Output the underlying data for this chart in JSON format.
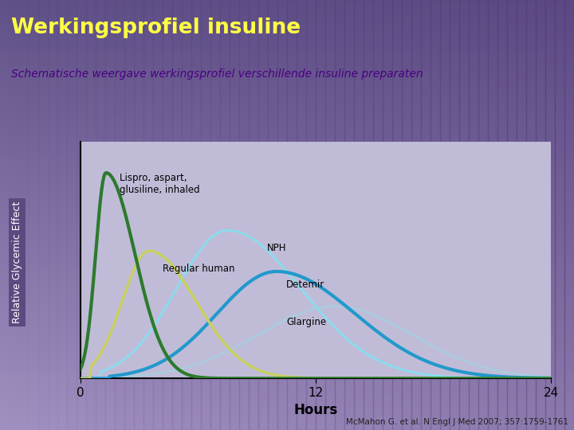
{
  "title": "Werkingsprofiel insuline",
  "subtitle": "Schematische weergave werkingsprofiel verschillende insuline preparaten",
  "xlabel": "Hours",
  "ylabel": "Relative Glycemic Effect",
  "xticks": [
    0,
    12,
    24
  ],
  "xlim": [
    0,
    24
  ],
  "ylim": [
    0,
    1.15
  ],
  "bg_top_color": "#a090c0",
  "bg_bottom_color": "#7060a0",
  "plot_bg_color": "#c0bcd8",
  "ylabel_bg_color": "#5a4a80",
  "title_color": "#ffff44",
  "subtitle_color": "#4b0082",
  "citation_color": "#222222",
  "lispro_color": "#2d7a2d",
  "regular_color": "#c8d060",
  "nph_color": "#88ddee",
  "detemir_color": "#2299cc",
  "glargine_color": "#aaccdd",
  "citation": "McMahon G. et al. N Engl J Med 2007; 357:1759-1761"
}
